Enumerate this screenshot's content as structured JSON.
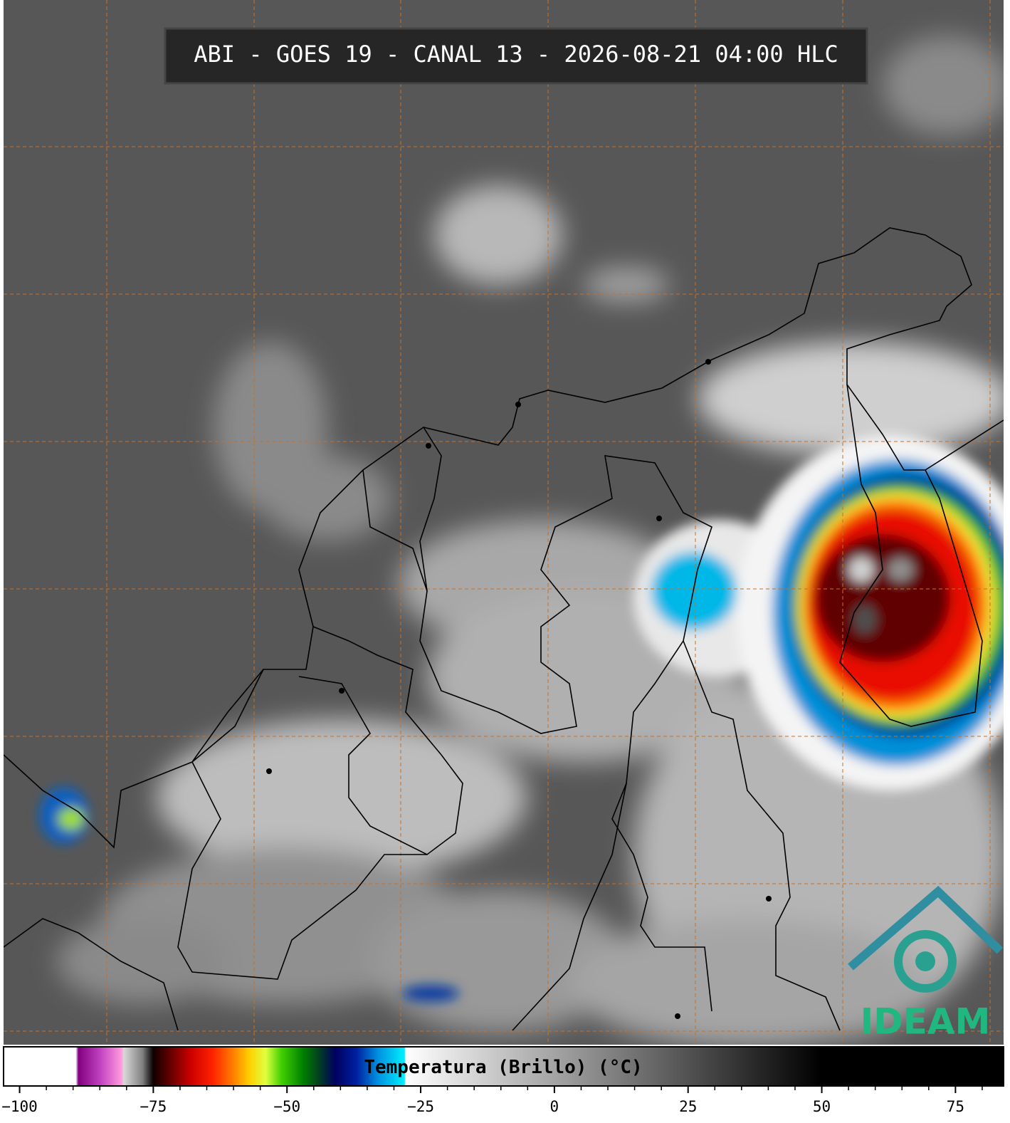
{
  "chart_data": {
    "type": "colorbar",
    "title": "ABI - GOES 19 - CANAL 13 - 2026-08-21 04:00 HLC",
    "label": "Temperatura (Brillo) (°C)",
    "logo": "IDEAM",
    "xlim": [
      -103,
      84
    ],
    "xticks": [
      {
        "value": -100,
        "label": "−100"
      },
      {
        "value": -75,
        "label": "−75"
      },
      {
        "value": -50,
        "label": "−50"
      },
      {
        "value": -25,
        "label": "−25"
      },
      0,
      25,
      50,
      75
    ],
    "xticks_minor": [
      -95,
      -90,
      -85,
      -80,
      -70,
      -65,
      -60,
      -55,
      -45,
      -40,
      -35,
      -30,
      -20,
      -15,
      -10,
      -5,
      5,
      10,
      15,
      20,
      30,
      35,
      40,
      45,
      55,
      60,
      65,
      70,
      80
    ],
    "colormap": [
      {
        "value": -103,
        "color": "#ffffff"
      },
      {
        "value": -89.5,
        "color": "#ffffff"
      },
      {
        "value": -89,
        "color": "#800080"
      },
      {
        "value": -85,
        "color": "#c040c0"
      },
      {
        "value": -81,
        "color": "#ff99dd"
      },
      {
        "value": -80.5,
        "color": "#d8d8d8"
      },
      {
        "value": -77,
        "color": "#808080"
      },
      {
        "value": -75.5,
        "color": "#202020"
      },
      {
        "value": -75,
        "color": "#100000"
      },
      {
        "value": -72,
        "color": "#600000"
      },
      {
        "value": -68,
        "color": "#cc0000"
      },
      {
        "value": -64,
        "color": "#ff2000"
      },
      {
        "value": -60,
        "color": "#ff8000"
      },
      {
        "value": -57,
        "color": "#ffd000"
      },
      {
        "value": -54,
        "color": "#e0ff40"
      },
      {
        "value": -51,
        "color": "#40d000"
      },
      {
        "value": -47,
        "color": "#008000"
      },
      {
        "value": -44,
        "color": "#004020"
      },
      {
        "value": -41,
        "color": "#000060"
      },
      {
        "value": -37,
        "color": "#0020a0"
      },
      {
        "value": -33,
        "color": "#0090e0"
      },
      {
        "value": -28,
        "color": "#00f0ff"
      },
      {
        "value": -27.9,
        "color": "#ffffff"
      },
      {
        "value": 50,
        "color": "#000000"
      },
      {
        "value": 84,
        "color": "#000000"
      }
    ]
  }
}
